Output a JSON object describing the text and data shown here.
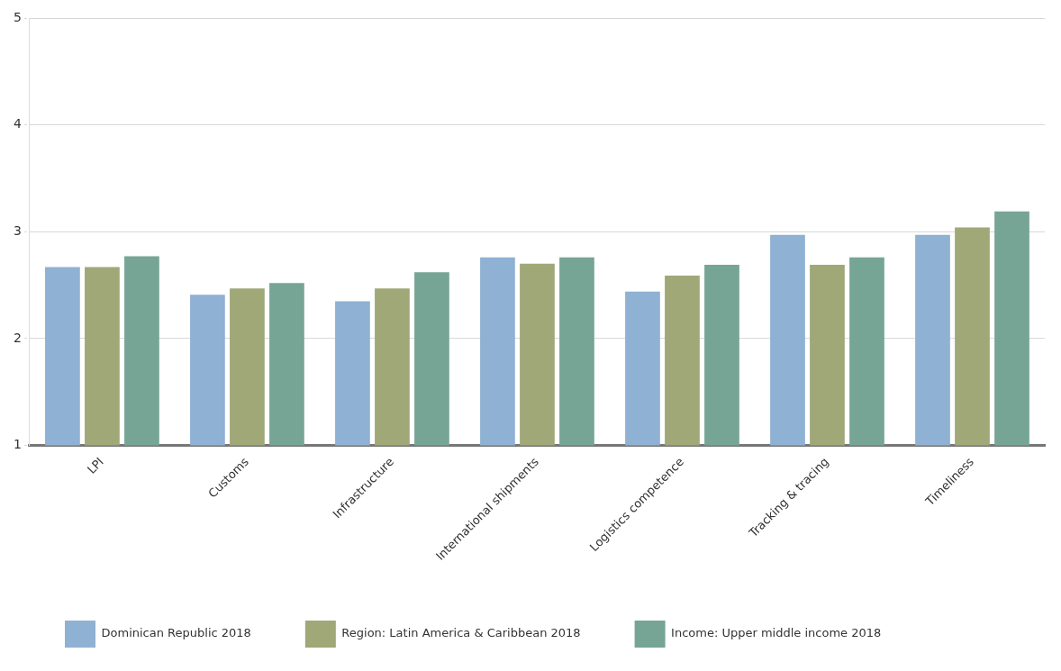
{
  "chart_data": {
    "type": "bar",
    "categories": [
      "LPI",
      "Customs",
      "Infrastructure",
      "International shipments",
      "Logistics competence",
      "Tracking & tracing",
      "Timeliness"
    ],
    "series": [
      {
        "name": "Dominican Republic 2018",
        "color": "#8fb1d3",
        "values": [
          2.67,
          2.41,
          2.35,
          2.76,
          2.44,
          2.97,
          2.97
        ]
      },
      {
        "name": "Region: Latin America & Caribbean 2018",
        "color": "#a0a878",
        "values": [
          2.67,
          2.47,
          2.47,
          2.7,
          2.59,
          2.69,
          3.04
        ]
      },
      {
        "name": "Income: Upper middle income 2018",
        "color": "#76a596",
        "values": [
          2.77,
          2.52,
          2.62,
          2.76,
          2.69,
          2.76,
          3.19
        ]
      }
    ],
    "ylim": [
      1,
      5
    ],
    "yticks": [
      1,
      2,
      3,
      4,
      5
    ],
    "grid": "y",
    "legend": "bottom"
  }
}
